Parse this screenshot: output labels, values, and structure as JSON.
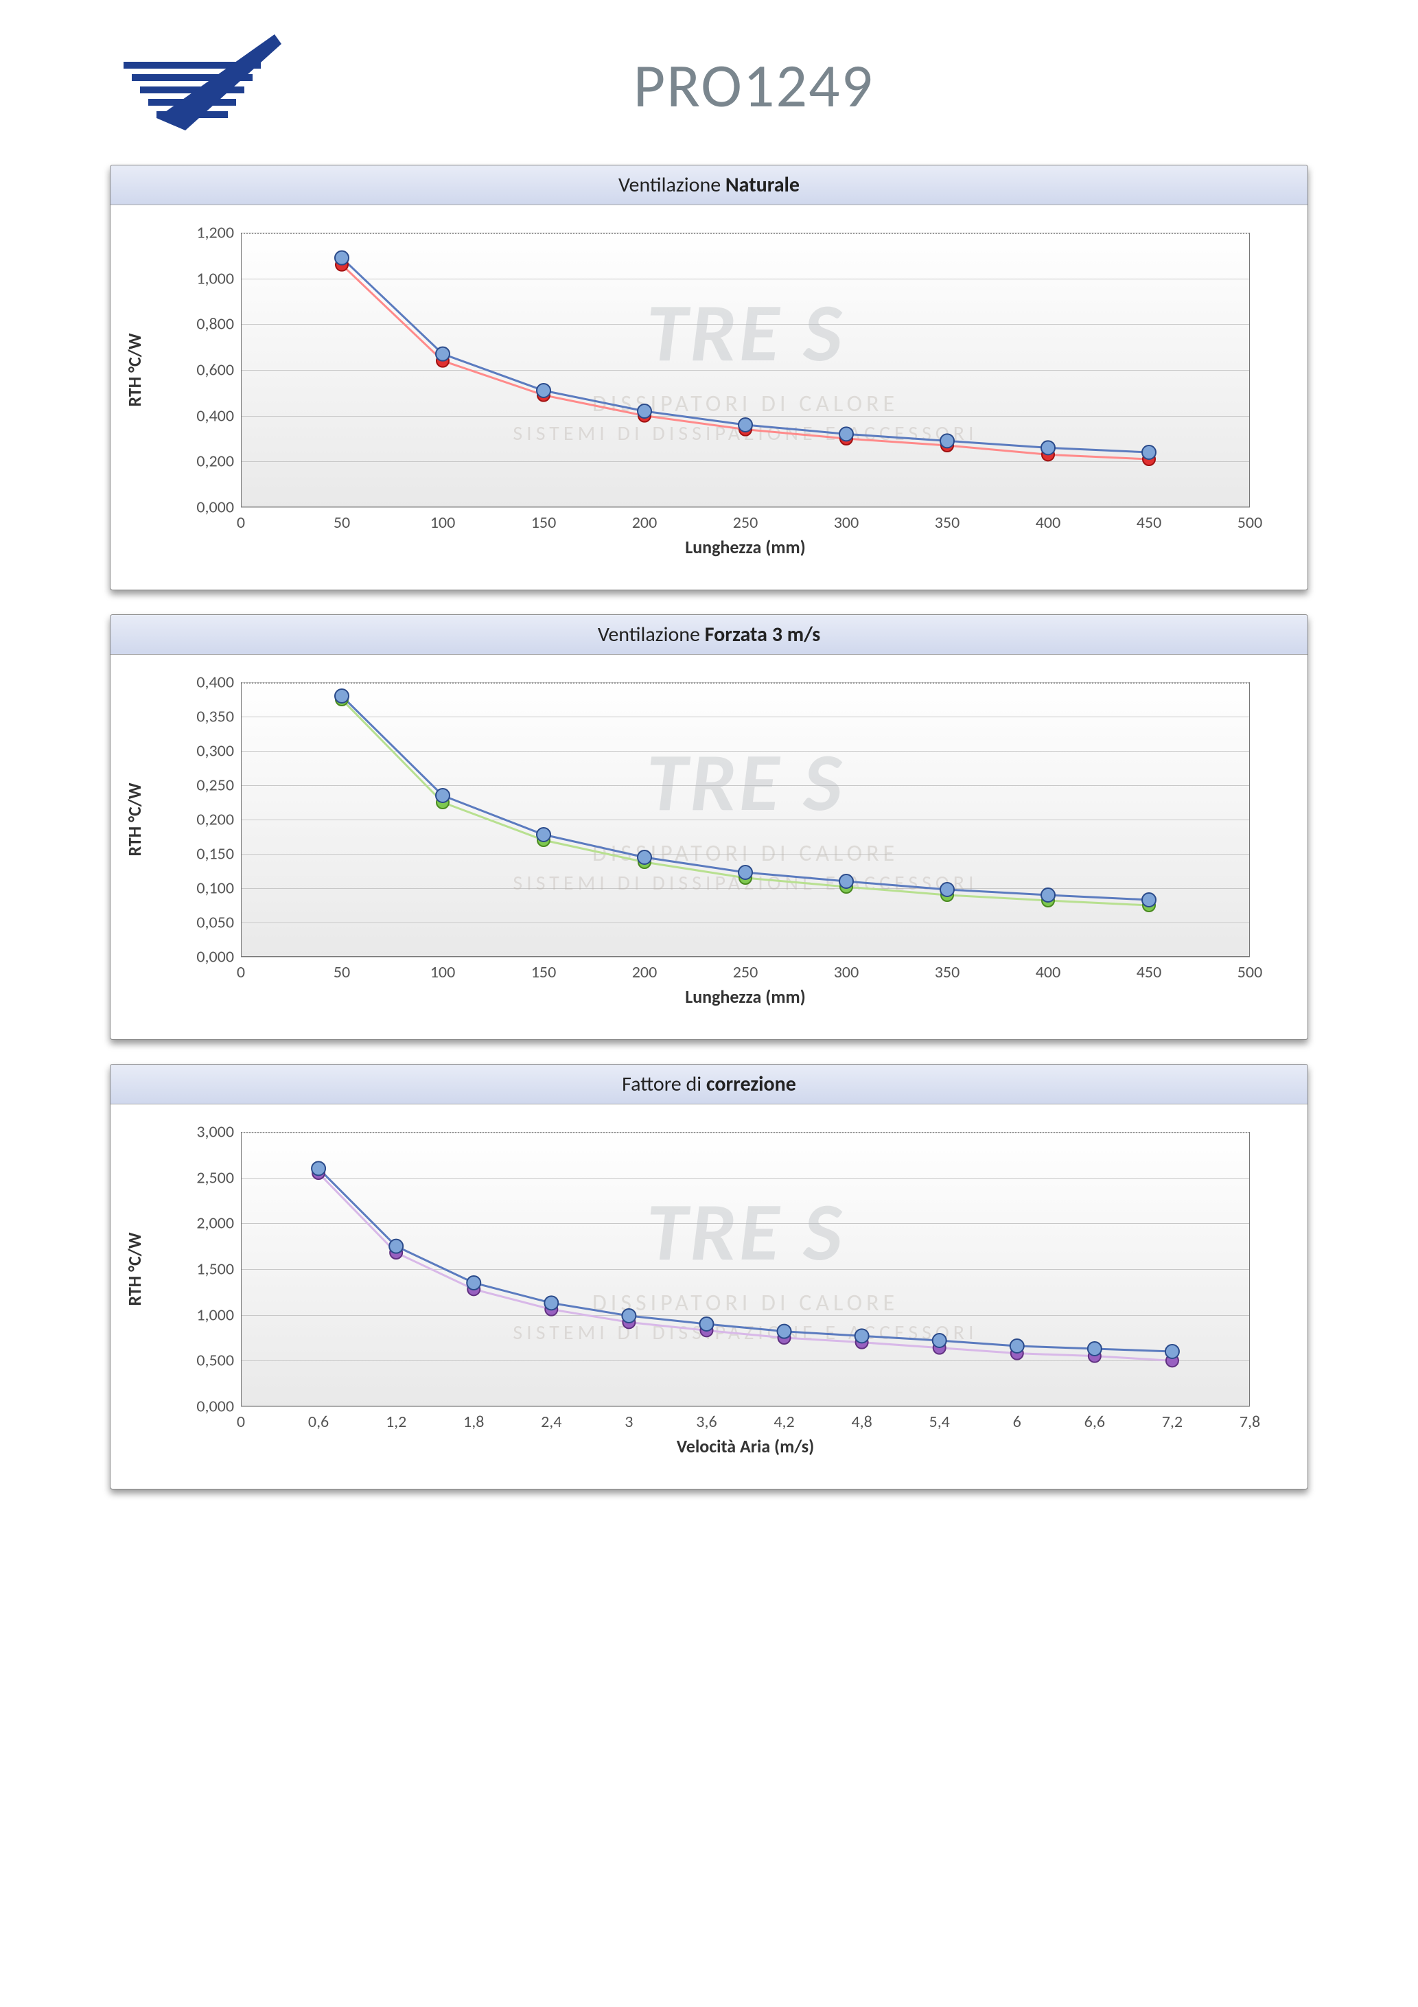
{
  "page_title": "PRO1249",
  "watermark": {
    "main": "TRE S",
    "line1": "DISSIPATORI DI CALORE",
    "line2": "SISTEMI DI DISSIPAZIONE E ACCESSORI"
  },
  "logo_colors": {
    "stripe": "#1f3f8f",
    "check": "#1f3f8f"
  },
  "charts": [
    {
      "id": "chart-natural",
      "title_prefix": "Ventilazione ",
      "title_bold": "Naturale",
      "ylabel": "RTH °C/W",
      "xlabel": "Lunghezza (mm)",
      "background_top": "#ffffff",
      "background_bottom": "#e9e9e9",
      "grid_color": "#c8c8c8",
      "border_color": "#777777",
      "top_dotted": true,
      "xlim": [
        0,
        500
      ],
      "ylim": [
        0.0,
        1.2
      ],
      "xticks": [
        0,
        50,
        100,
        150,
        200,
        250,
        300,
        350,
        400,
        450,
        500
      ],
      "yticks": [
        0.0,
        0.2,
        0.4,
        0.6,
        0.8,
        1.0,
        1.2
      ],
      "ytick_labels": [
        "0,000",
        "0,200",
        "0,400",
        "0,600",
        "0,800",
        "1,000",
        "1,200"
      ],
      "series": [
        {
          "name": "series-red",
          "line_color": "#ff8a8a",
          "line_width": 3,
          "marker_fill": "#e03030",
          "marker_stroke": "#a01010",
          "marker_r": 9,
          "x": [
            50,
            100,
            150,
            200,
            250,
            300,
            350,
            400,
            450
          ],
          "y": [
            1.06,
            0.64,
            0.49,
            0.4,
            0.34,
            0.3,
            0.27,
            0.23,
            0.21
          ]
        },
        {
          "name": "series-blue",
          "line_color": "#5b7bbf",
          "line_width": 3,
          "marker_fill": "#7fa5d8",
          "marker_stroke": "#2a4a8a",
          "marker_r": 10,
          "x": [
            50,
            100,
            150,
            200,
            250,
            300,
            350,
            400,
            450
          ],
          "y": [
            1.09,
            0.67,
            0.51,
            0.42,
            0.36,
            0.32,
            0.29,
            0.26,
            0.24
          ]
        }
      ]
    },
    {
      "id": "chart-forced",
      "title_prefix": "Ventilazione ",
      "title_bold": "Forzata 3 m/s",
      "ylabel": "RTH °C/W",
      "xlabel": "Lunghezza (mm)",
      "background_top": "#ffffff",
      "background_bottom": "#e9e9e9",
      "grid_color": "#c8c8c8",
      "border_color": "#777777",
      "top_dotted": true,
      "xlim": [
        0,
        500
      ],
      "ylim": [
        0.0,
        0.4
      ],
      "xticks": [
        0,
        50,
        100,
        150,
        200,
        250,
        300,
        350,
        400,
        450,
        500
      ],
      "yticks": [
        0.0,
        0.05,
        0.1,
        0.15,
        0.2,
        0.25,
        0.3,
        0.35,
        0.4
      ],
      "ytick_labels": [
        "0,000",
        "0,050",
        "0,100",
        "0,150",
        "0,200",
        "0,250",
        "0,300",
        "0,350",
        "0,400"
      ],
      "series": [
        {
          "name": "series-green",
          "line_color": "#b8e090",
          "line_width": 3,
          "marker_fill": "#7ec850",
          "marker_stroke": "#4a8a20",
          "marker_r": 9,
          "x": [
            50,
            100,
            150,
            200,
            250,
            300,
            350,
            400,
            450
          ],
          "y": [
            0.375,
            0.225,
            0.17,
            0.138,
            0.115,
            0.102,
            0.09,
            0.082,
            0.075
          ]
        },
        {
          "name": "series-blue",
          "line_color": "#5b7bbf",
          "line_width": 3,
          "marker_fill": "#7fa5d8",
          "marker_stroke": "#2a4a8a",
          "marker_r": 10,
          "x": [
            50,
            100,
            150,
            200,
            250,
            300,
            350,
            400,
            450
          ],
          "y": [
            0.38,
            0.235,
            0.178,
            0.145,
            0.123,
            0.11,
            0.098,
            0.09,
            0.083
          ]
        }
      ]
    },
    {
      "id": "chart-correction",
      "title_prefix": "Fattore di ",
      "title_bold": "correzione",
      "ylabel": "RTH °C/W",
      "xlabel": "Velocità Aria (m/s)",
      "background_top": "#ffffff",
      "background_bottom": "#e9e9e9",
      "grid_color": "#c8c8c8",
      "border_color": "#777777",
      "top_dotted": true,
      "xlim": [
        0,
        7.8
      ],
      "ylim": [
        0.0,
        3.0
      ],
      "xticks": [
        0,
        0.6,
        1.2,
        1.8,
        2.4,
        3.0,
        3.6,
        4.2,
        4.8,
        5.4,
        6.0,
        6.6,
        7.2,
        7.8
      ],
      "xtick_labels": [
        "0",
        "0,6",
        "1,2",
        "1,8",
        "2,4",
        "3",
        "3,6",
        "4,2",
        "4,8",
        "5,4",
        "6",
        "6,6",
        "7,2",
        "7,8"
      ],
      "yticks": [
        0.0,
        0.5,
        1.0,
        1.5,
        2.0,
        2.5,
        3.0
      ],
      "ytick_labels": [
        "0,000",
        "0,500",
        "1,000",
        "1,500",
        "2,000",
        "2,500",
        "3,000"
      ],
      "series": [
        {
          "name": "series-purple",
          "line_color": "#d8b8e8",
          "line_width": 3,
          "marker_fill": "#9860c0",
          "marker_stroke": "#603080",
          "marker_r": 9,
          "x": [
            0.6,
            1.2,
            1.8,
            2.4,
            3.0,
            3.6,
            4.2,
            4.8,
            5.4,
            6.0,
            6.6,
            7.2
          ],
          "y": [
            2.55,
            1.68,
            1.28,
            1.06,
            0.92,
            0.83,
            0.75,
            0.7,
            0.64,
            0.58,
            0.55,
            0.5
          ]
        },
        {
          "name": "series-blue",
          "line_color": "#5b7bbf",
          "line_width": 3,
          "marker_fill": "#7fa5d8",
          "marker_stroke": "#2a4a8a",
          "marker_r": 10,
          "x": [
            0.6,
            1.2,
            1.8,
            2.4,
            3.0,
            3.6,
            4.2,
            4.8,
            5.4,
            6.0,
            6.6,
            7.2
          ],
          "y": [
            2.6,
            1.75,
            1.35,
            1.13,
            0.99,
            0.9,
            0.82,
            0.77,
            0.72,
            0.66,
            0.63,
            0.6
          ]
        }
      ]
    }
  ]
}
